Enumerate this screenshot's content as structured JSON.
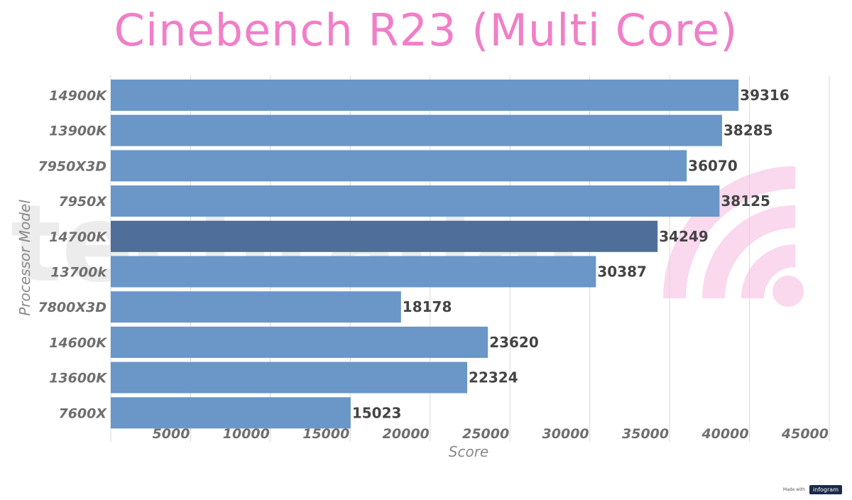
{
  "chart_data": {
    "type": "bar",
    "orientation": "horizontal",
    "title": "Cinebench R23 (Multi Core)",
    "xlabel": "Score",
    "ylabel": "Processor Model",
    "categories": [
      "14900K",
      "13900K",
      "7950X3D",
      "7950X",
      "14700K",
      "13700k",
      "7800X3D",
      "14600K",
      "13600K",
      "7600X"
    ],
    "values": [
      39316,
      38285,
      36070,
      38125,
      34249,
      30387,
      18178,
      23620,
      22324,
      15023
    ],
    "highlight_index": 4,
    "xlim": [
      0,
      45000
    ],
    "xticks": [
      5000,
      10000,
      15000,
      20000,
      25000,
      30000,
      35000,
      40000,
      45000
    ],
    "grid": "vertical",
    "data_labels": true
  },
  "colors": {
    "title": "#f07fc8",
    "bar": "#6a96c8",
    "bar_highlight": "#4f6e9a",
    "grid": "#d8d8d8"
  },
  "watermark": {
    "text": "techradar"
  },
  "badge": {
    "made_with": "Made with",
    "brand": "infogram"
  }
}
